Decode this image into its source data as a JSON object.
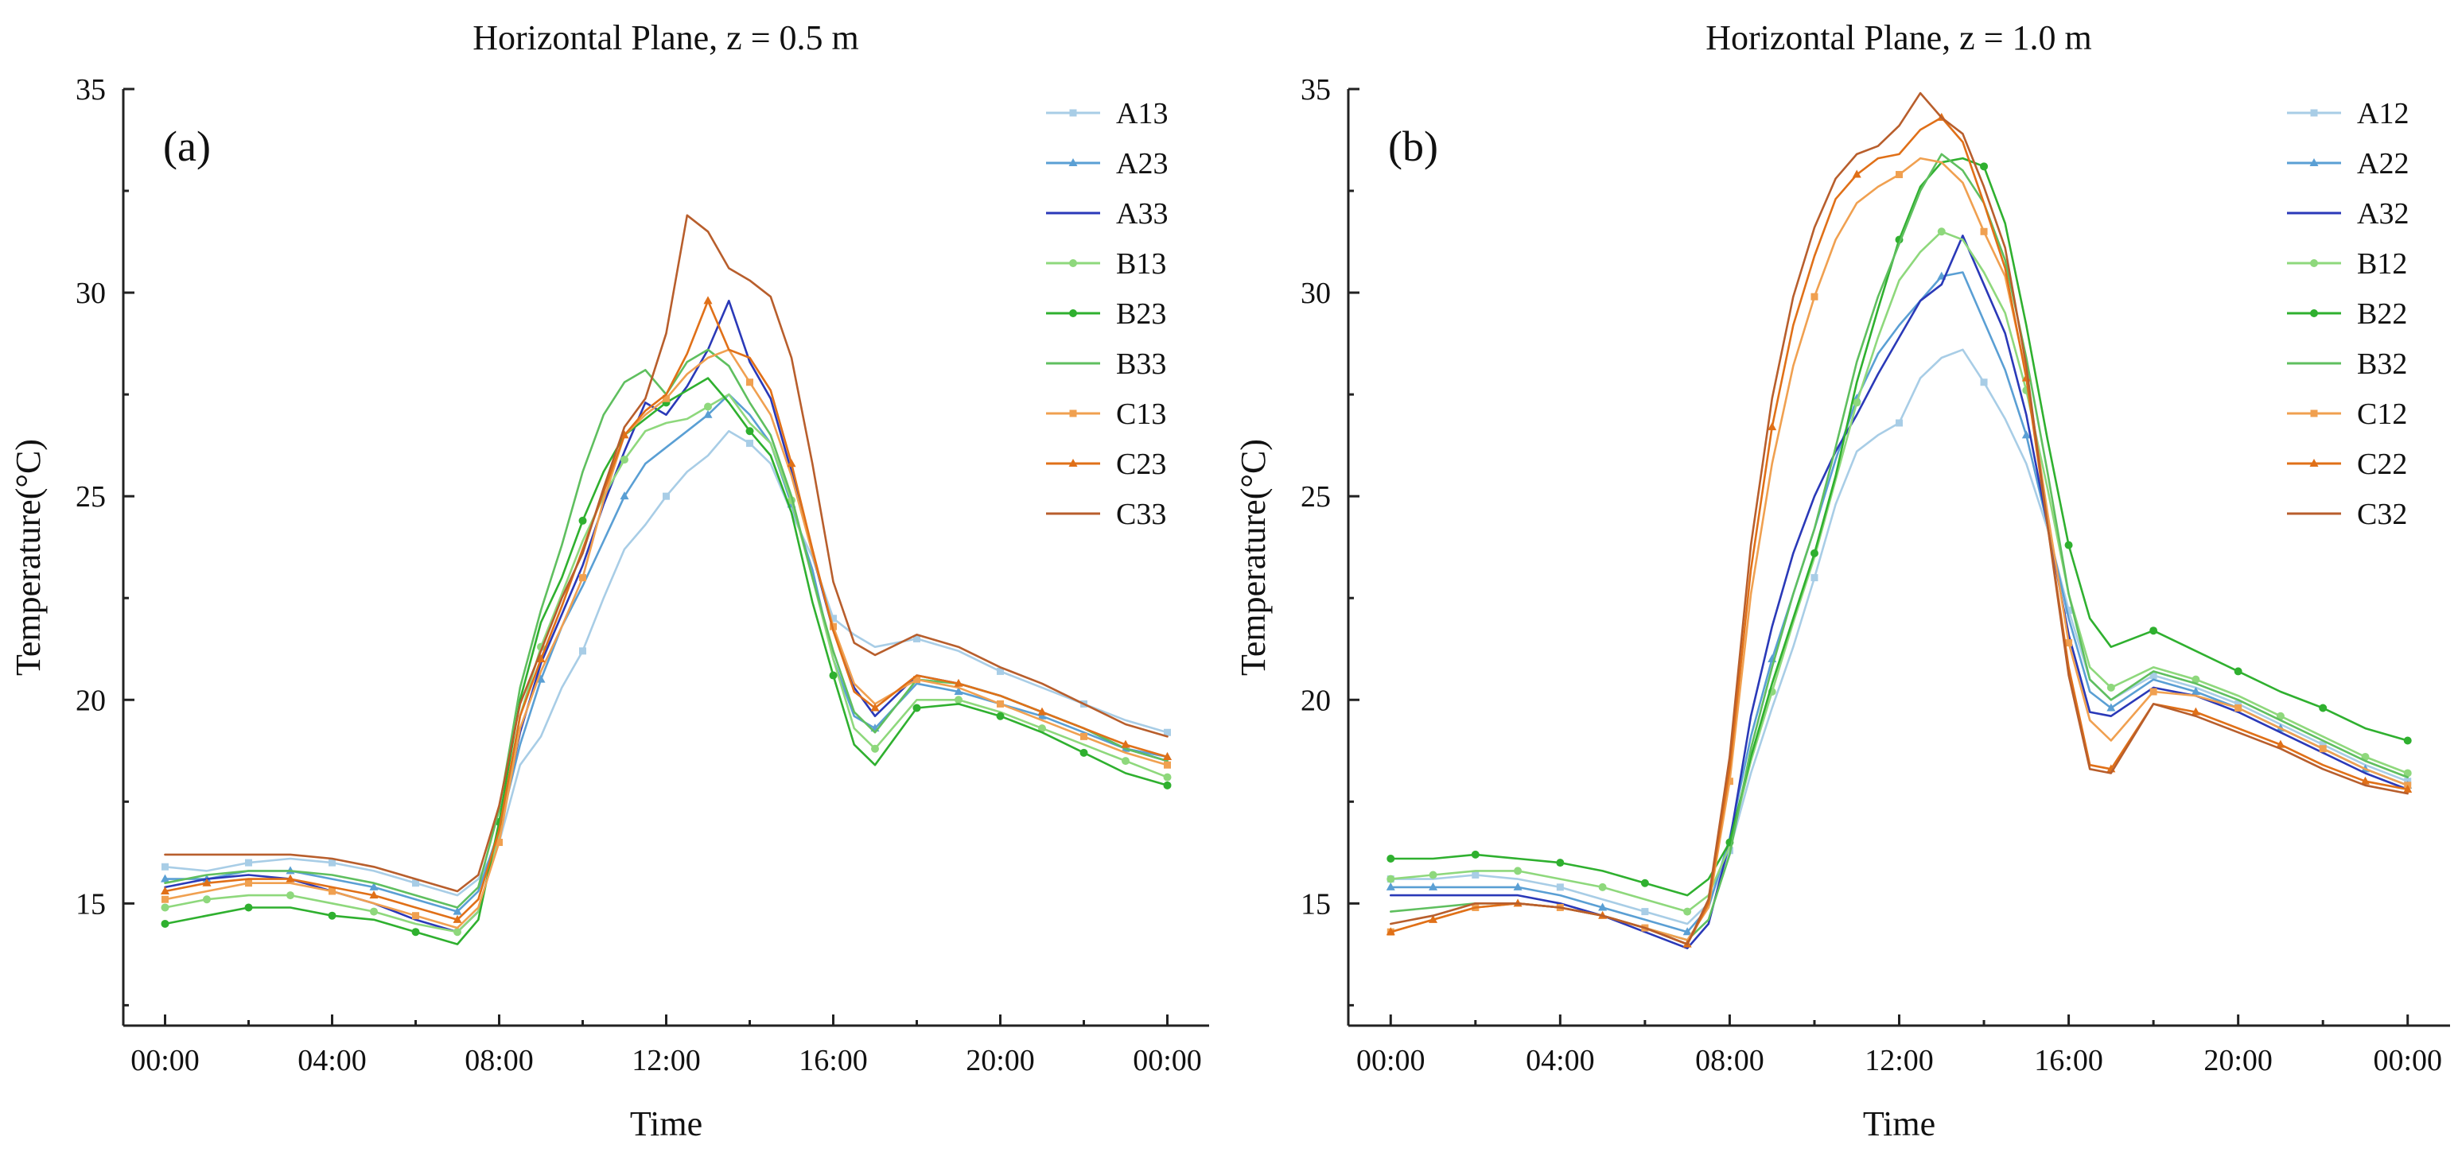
{
  "series_colors": {
    "A1": "#a8cde6",
    "A2": "#5a9fd4",
    "A3": "#2a39b8",
    "B1": "#8ed87c",
    "B2": "#2fb02f",
    "B3": "#5fbf5f",
    "C1": "#f0a050",
    "C2": "#e07018",
    "C3": "#b85e2c"
  },
  "chart_data": [
    {
      "type": "line",
      "panel_label": "(a)",
      "title": "Horizontal Plane, z = 0.5 m",
      "xlabel": "Time",
      "ylabel": "Temperature(°C)",
      "ylim": [
        12,
        35
      ],
      "xlim": [
        -1,
        25
      ],
      "yticks": [
        15,
        20,
        25,
        30,
        35
      ],
      "xtick_values": [
        0,
        4,
        8,
        12,
        16,
        20,
        24
      ],
      "xtick_labels": [
        "00:00",
        "04:00",
        "08:00",
        "12:00",
        "16:00",
        "20:00",
        "00:00"
      ],
      "x": [
        0,
        1,
        2,
        3,
        4,
        5,
        6,
        7,
        7.5,
        8,
        8.5,
        9,
        9.5,
        10,
        10.5,
        11,
        11.5,
        12,
        12.5,
        13,
        13.5,
        14,
        14.5,
        15,
        15.5,
        16,
        16.5,
        17,
        18,
        19,
        20,
        21,
        22,
        23,
        24
      ],
      "legend_position": "top-right",
      "series": [
        {
          "name": "A13",
          "color_key": "A1",
          "marker": "square",
          "values": [
            15.9,
            15.8,
            16.0,
            16.1,
            16.0,
            15.8,
            15.5,
            15.2,
            15.6,
            16.5,
            18.4,
            19.1,
            20.3,
            21.2,
            22.5,
            23.7,
            24.3,
            25.0,
            25.6,
            26.0,
            26.6,
            26.3,
            25.8,
            24.6,
            23.5,
            22.0,
            21.6,
            21.3,
            21.5,
            21.2,
            20.7,
            20.3,
            19.9,
            19.5,
            19.2
          ]
        },
        {
          "name": "A23",
          "color_key": "A2",
          "marker": "triangle",
          "values": [
            15.6,
            15.6,
            15.8,
            15.8,
            15.6,
            15.4,
            15.1,
            14.8,
            15.3,
            16.8,
            18.9,
            20.5,
            21.8,
            22.8,
            23.9,
            25.0,
            25.8,
            26.2,
            26.6,
            27.0,
            27.5,
            27.0,
            26.3,
            24.8,
            23.2,
            21.0,
            19.6,
            19.3,
            20.4,
            20.2,
            19.9,
            19.6,
            19.2,
            18.8,
            18.6
          ]
        },
        {
          "name": "A33",
          "color_key": "A3",
          "marker": "none",
          "values": [
            15.4,
            15.6,
            15.7,
            15.6,
            15.3,
            15.0,
            14.6,
            14.3,
            14.8,
            16.7,
            19.2,
            20.9,
            22.1,
            23.3,
            24.8,
            26.1,
            27.3,
            27.0,
            27.7,
            28.6,
            29.8,
            28.3,
            27.4,
            25.6,
            23.6,
            21.7,
            20.3,
            19.6,
            20.6,
            20.4,
            20.1,
            19.7,
            19.3,
            18.8,
            18.5
          ]
        },
        {
          "name": "B13",
          "color_key": "B1",
          "marker": "circle",
          "values": [
            14.9,
            15.1,
            15.2,
            15.2,
            15.0,
            14.8,
            14.5,
            14.3,
            14.8,
            16.7,
            19.6,
            21.3,
            22.6,
            23.9,
            25.0,
            25.9,
            26.6,
            26.8,
            26.9,
            27.2,
            27.5,
            26.8,
            26.3,
            24.9,
            23.0,
            21.0,
            19.3,
            18.8,
            20.0,
            20.0,
            19.7,
            19.3,
            18.9,
            18.5,
            18.1
          ]
        },
        {
          "name": "B23",
          "color_key": "B2",
          "marker": "circle",
          "values": [
            14.5,
            14.7,
            14.9,
            14.9,
            14.7,
            14.6,
            14.3,
            14.0,
            14.6,
            17.0,
            20.0,
            21.9,
            23.0,
            24.4,
            25.6,
            26.5,
            26.9,
            27.3,
            27.6,
            27.9,
            27.3,
            26.6,
            26.0,
            24.6,
            22.4,
            20.6,
            18.9,
            18.4,
            19.8,
            19.9,
            19.6,
            19.2,
            18.7,
            18.2,
            17.9
          ]
        },
        {
          "name": "B33",
          "color_key": "B3",
          "marker": "none",
          "values": [
            15.5,
            15.7,
            15.8,
            15.8,
            15.7,
            15.5,
            15.2,
            14.9,
            15.4,
            17.3,
            20.3,
            22.2,
            23.8,
            25.6,
            27.0,
            27.8,
            28.1,
            27.5,
            28.3,
            28.6,
            28.2,
            27.3,
            26.5,
            25.0,
            23.0,
            21.2,
            19.7,
            19.2,
            20.5,
            20.4,
            20.1,
            19.7,
            19.3,
            18.8,
            18.5
          ]
        },
        {
          "name": "C13",
          "color_key": "C1",
          "marker": "square",
          "values": [
            15.1,
            15.3,
            15.5,
            15.5,
            15.3,
            15.0,
            14.7,
            14.4,
            14.9,
            16.5,
            19.3,
            20.7,
            21.8,
            23.0,
            24.9,
            26.5,
            27.0,
            27.4,
            28.0,
            28.4,
            28.6,
            27.8,
            27.0,
            25.5,
            23.6,
            21.8,
            20.4,
            19.9,
            20.5,
            20.3,
            19.9,
            19.5,
            19.1,
            18.7,
            18.4
          ]
        },
        {
          "name": "C23",
          "color_key": "C2",
          "marker": "triangle",
          "values": [
            15.3,
            15.5,
            15.6,
            15.6,
            15.4,
            15.2,
            14.9,
            14.6,
            15.1,
            16.8,
            19.6,
            21.0,
            22.3,
            23.7,
            25.1,
            26.5,
            27.1,
            27.5,
            28.5,
            29.8,
            28.6,
            28.4,
            27.6,
            25.8,
            23.7,
            21.7,
            20.2,
            19.8,
            20.6,
            20.4,
            20.1,
            19.7,
            19.3,
            18.9,
            18.6
          ]
        },
        {
          "name": "C33",
          "color_key": "C3",
          "marker": "none",
          "values": [
            16.2,
            16.2,
            16.2,
            16.2,
            16.1,
            15.9,
            15.6,
            15.3,
            15.7,
            17.4,
            19.9,
            21.2,
            22.5,
            23.6,
            25.2,
            26.7,
            27.4,
            29.0,
            31.9,
            31.5,
            30.6,
            30.3,
            29.9,
            28.4,
            25.8,
            22.9,
            21.4,
            21.1,
            21.6,
            21.3,
            20.8,
            20.4,
            19.9,
            19.4,
            19.1
          ]
        }
      ]
    },
    {
      "type": "line",
      "panel_label": "(b)",
      "title": "Horizontal Plane, z = 1.0 m",
      "xlabel": "Time",
      "ylabel": "Temperature(°C)",
      "ylim": [
        12,
        35
      ],
      "xlim": [
        -1,
        25
      ],
      "yticks": [
        15,
        20,
        25,
        30,
        35
      ],
      "xtick_values": [
        0,
        4,
        8,
        12,
        16,
        20,
        24
      ],
      "xtick_labels": [
        "00:00",
        "04:00",
        "08:00",
        "12:00",
        "16:00",
        "20:00",
        "00:00"
      ],
      "x": [
        0,
        1,
        2,
        3,
        4,
        5,
        6,
        7,
        7.5,
        8,
        8.5,
        9,
        9.5,
        10,
        10.5,
        11,
        11.5,
        12,
        12.5,
        13,
        13.5,
        14,
        14.5,
        15,
        15.5,
        16,
        16.5,
        17,
        18,
        19,
        20,
        21,
        22,
        23,
        24
      ],
      "legend_position": "top-right",
      "series": [
        {
          "name": "A12",
          "color_key": "A1",
          "marker": "square",
          "values": [
            15.6,
            15.6,
            15.7,
            15.6,
            15.4,
            15.1,
            14.8,
            14.5,
            15.0,
            16.3,
            18.2,
            19.8,
            21.3,
            23.0,
            24.8,
            26.1,
            26.5,
            26.8,
            27.9,
            28.4,
            28.6,
            27.8,
            26.9,
            25.8,
            24.2,
            22.2,
            20.5,
            20.0,
            20.6,
            20.3,
            19.9,
            19.4,
            18.9,
            18.4,
            18.0
          ]
        },
        {
          "name": "A22",
          "color_key": "A2",
          "marker": "triangle",
          "values": [
            15.4,
            15.4,
            15.4,
            15.4,
            15.2,
            14.9,
            14.6,
            14.3,
            14.9,
            16.6,
            19.1,
            21.0,
            22.6,
            24.2,
            25.9,
            27.4,
            28.5,
            29.2,
            29.8,
            30.4,
            30.5,
            29.3,
            28.1,
            26.5,
            24.3,
            22.0,
            20.2,
            19.8,
            20.5,
            20.2,
            19.8,
            19.3,
            18.8,
            18.3,
            17.9
          ]
        },
        {
          "name": "A32",
          "color_key": "A3",
          "marker": "none",
          "values": [
            15.2,
            15.2,
            15.2,
            15.2,
            15.0,
            14.7,
            14.3,
            13.9,
            14.5,
            16.5,
            19.6,
            21.8,
            23.6,
            25.0,
            26.1,
            27.0,
            28.0,
            28.9,
            29.8,
            30.2,
            31.4,
            30.2,
            29.0,
            27.0,
            24.3,
            21.6,
            19.7,
            19.6,
            20.3,
            20.1,
            19.7,
            19.2,
            18.7,
            18.2,
            17.8
          ]
        },
        {
          "name": "B12",
          "color_key": "B1",
          "marker": "circle",
          "values": [
            15.6,
            15.7,
            15.8,
            15.8,
            15.6,
            15.4,
            15.1,
            14.8,
            15.2,
            16.4,
            18.5,
            20.2,
            21.9,
            23.5,
            25.4,
            27.3,
            28.9,
            30.3,
            31.0,
            31.5,
            31.3,
            30.5,
            29.5,
            27.6,
            25.2,
            22.6,
            20.8,
            20.3,
            20.8,
            20.5,
            20.1,
            19.6,
            19.1,
            18.6,
            18.2
          ]
        },
        {
          "name": "B22",
          "color_key": "B2",
          "marker": "circle",
          "values": [
            16.1,
            16.1,
            16.2,
            16.1,
            16.0,
            15.8,
            15.5,
            15.2,
            15.6,
            16.5,
            18.6,
            20.4,
            22.0,
            23.6,
            25.5,
            27.8,
            29.6,
            31.3,
            32.6,
            33.2,
            33.3,
            33.1,
            31.7,
            29.2,
            26.4,
            23.8,
            22.0,
            21.3,
            21.7,
            21.2,
            20.7,
            20.2,
            19.8,
            19.3,
            19.0
          ]
        },
        {
          "name": "B32",
          "color_key": "B3",
          "marker": "none",
          "values": [
            14.8,
            14.9,
            15.0,
            15.0,
            14.9,
            14.7,
            14.4,
            14.1,
            14.6,
            16.2,
            18.8,
            20.8,
            22.6,
            24.2,
            26.2,
            28.3,
            29.9,
            31.2,
            32.5,
            33.4,
            33.0,
            32.2,
            30.8,
            28.4,
            25.6,
            22.6,
            20.5,
            20.0,
            20.7,
            20.4,
            20.0,
            19.5,
            19.0,
            18.5,
            18.1
          ]
        },
        {
          "name": "C12",
          "color_key": "C1",
          "marker": "square",
          "values": [
            14.3,
            14.6,
            14.9,
            15.0,
            14.9,
            14.7,
            14.4,
            14.1,
            14.9,
            18.0,
            22.6,
            25.8,
            28.2,
            29.9,
            31.3,
            32.2,
            32.6,
            32.9,
            33.3,
            33.2,
            32.7,
            31.5,
            30.4,
            28.0,
            24.6,
            21.4,
            19.5,
            19.0,
            20.2,
            20.1,
            19.8,
            19.3,
            18.8,
            18.3,
            17.9
          ]
        },
        {
          "name": "C22",
          "color_key": "C2",
          "marker": "triangle",
          "values": [
            14.3,
            14.6,
            14.9,
            15.0,
            14.9,
            14.7,
            14.4,
            14.0,
            15.0,
            18.3,
            23.2,
            26.7,
            29.2,
            30.9,
            32.3,
            32.9,
            33.3,
            33.4,
            34.0,
            34.3,
            33.7,
            32.2,
            30.6,
            27.9,
            24.3,
            20.8,
            18.4,
            18.3,
            19.9,
            19.7,
            19.3,
            18.9,
            18.4,
            18.0,
            17.8
          ]
        },
        {
          "name": "C32",
          "color_key": "C3",
          "marker": "none",
          "values": [
            14.5,
            14.7,
            15.0,
            15.0,
            14.9,
            14.7,
            14.4,
            14.0,
            15.1,
            18.6,
            23.8,
            27.4,
            29.9,
            31.6,
            32.8,
            33.4,
            33.6,
            34.1,
            34.9,
            34.3,
            33.9,
            32.6,
            31.1,
            28.2,
            24.3,
            20.6,
            18.3,
            18.2,
            19.9,
            19.6,
            19.2,
            18.8,
            18.3,
            17.9,
            17.7
          ]
        }
      ]
    }
  ]
}
